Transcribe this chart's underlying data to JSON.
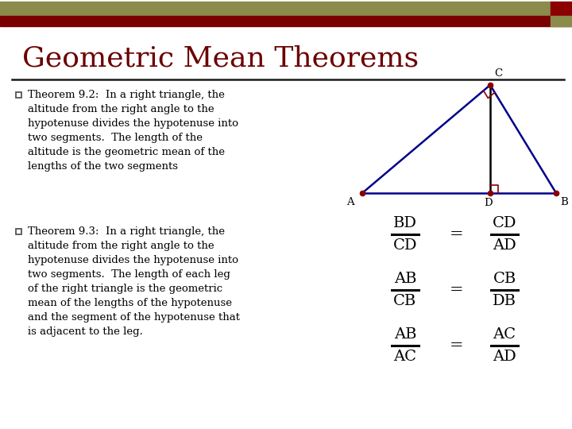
{
  "title": "Geometric Mean Theorems",
  "title_color": "#6B0000",
  "title_fontsize": 26,
  "bg_color": "#FFFFFF",
  "header_olive_color": "#8B8B4B",
  "header_red_color": "#7A0000",
  "header_accent_red": "#8B0000",
  "header_accent_olive": "#8B8B4B",
  "text_color": "#000000",
  "theorem1": "Theorem 9.2:  In a right triangle, the\naltitude from the right angle to the\nhypotenuse divides the hypotenuse into\ntwo segments.  The length of the\naltitude is the geometric mean of the\nlengths of the two segments",
  "theorem2": "Theorem 9.3:  In a right triangle, the\naltitude from the right angle to the\nhypotenuse divides the hypotenuse into\ntwo segments.  The length of each leg\nof the right triangle is the geometric\nmean of the lengths of the hypotenuse\nand the segment of the hypotenuse that\nis adjacent to the leg.",
  "triangle_color": "#00008B",
  "altitude_color": "#000000",
  "right_angle_color": "#8B0000",
  "point_color": "#8B0000",
  "divider_color": "#1A1A1A",
  "frac_color": "#000000",
  "eq_color": "#000000"
}
